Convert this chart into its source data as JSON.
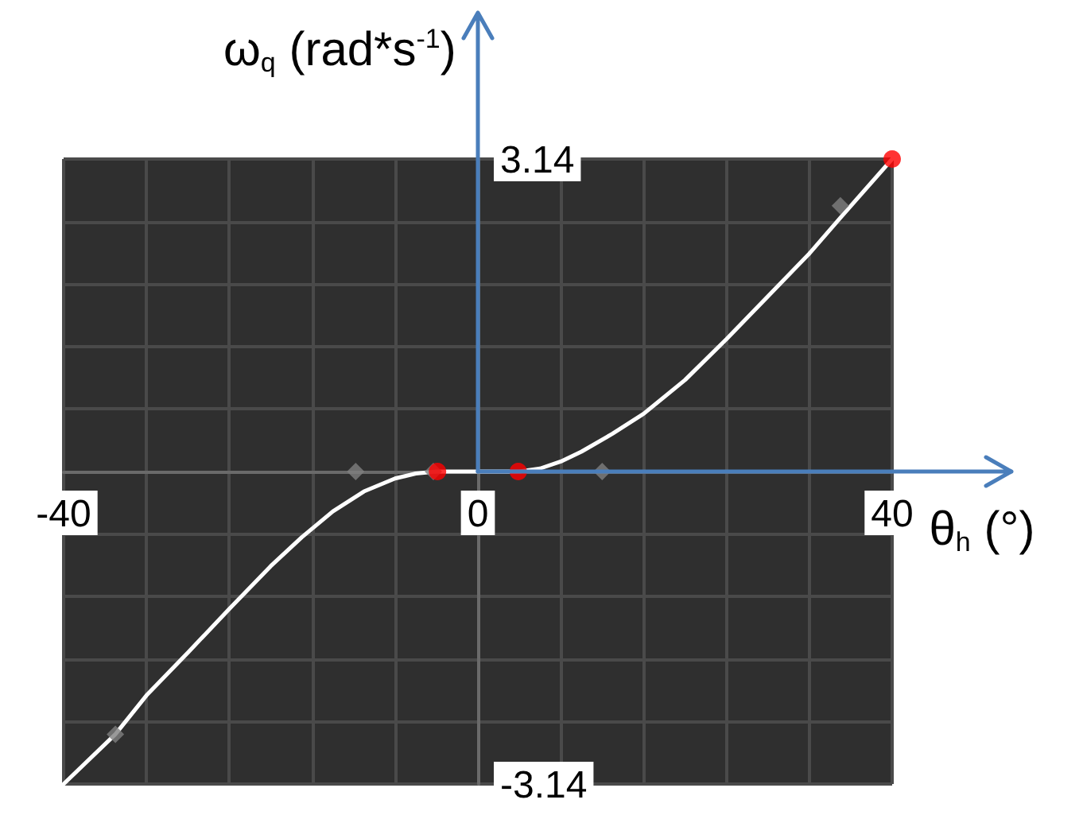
{
  "chart_data": {
    "type": "line",
    "xlabel": "θ$_{h}$ (°)",
    "ylabel": "ω$_{q}$ (rad*s$^{-1}$)",
    "xlim": [
      -40,
      40
    ],
    "ylim": [
      -3.14,
      3.14
    ],
    "xticks": [
      -40,
      {
        "value": -32,
        "label": null
      },
      {
        "value": -24,
        "label": null
      },
      {
        "value": -16,
        "label": null
      },
      {
        "value": -8,
        "label": null
      },
      0,
      {
        "value": 8,
        "label": null
      },
      {
        "value": 16,
        "label": null
      },
      {
        "value": 24,
        "label": null
      },
      {
        "value": 32,
        "label": null
      },
      40
    ],
    "yticks": [
      -3.14,
      {
        "value": -2.512,
        "label": null
      },
      {
        "value": -1.884,
        "label": null
      },
      {
        "value": -1.256,
        "label": null
      },
      {
        "value": -0.628,
        "label": null
      },
      {
        "value": 0,
        "label": null
      },
      {
        "value": 0.628,
        "label": null
      },
      {
        "value": 1.256,
        "label": null
      },
      {
        "value": 1.884,
        "label": null
      },
      {
        "value": 2.512,
        "label": null
      },
      3.14
    ],
    "grid": true,
    "series": [
      {
        "color": "#ffffff",
        "marker": "none",
        "line_style": "solid",
        "x": [
          -40,
          -35,
          -32,
          -28,
          -24,
          -20,
          -17,
          -14,
          -11,
          -8,
          -6,
          -4,
          4,
          6,
          8,
          10,
          13,
          16,
          20,
          24,
          28,
          32,
          35,
          40
        ],
        "values": [
          -3.14,
          -2.64,
          -2.25,
          -1.82,
          -1.38,
          -0.95,
          -0.66,
          -0.4,
          -0.2,
          -0.07,
          -0.02,
          0,
          0,
          0.03,
          0.1,
          0.2,
          0.38,
          0.58,
          0.92,
          1.33,
          1.76,
          2.19,
          2.55,
          3.14
        ]
      },
      {
        "type": "scatter",
        "color": "#808080",
        "marker": "diamond",
        "x": [
          -35,
          -11.8,
          -4.3,
          12,
          35
        ],
        "values": [
          -2.64,
          0,
          0,
          0,
          2.67
        ]
      },
      {
        "type": "scatter",
        "color": "#ff0000",
        "marker": "circle",
        "x": [
          -3.9,
          3.9,
          40
        ],
        "values": [
          0,
          0,
          3.14
        ]
      }
    ]
  }
}
